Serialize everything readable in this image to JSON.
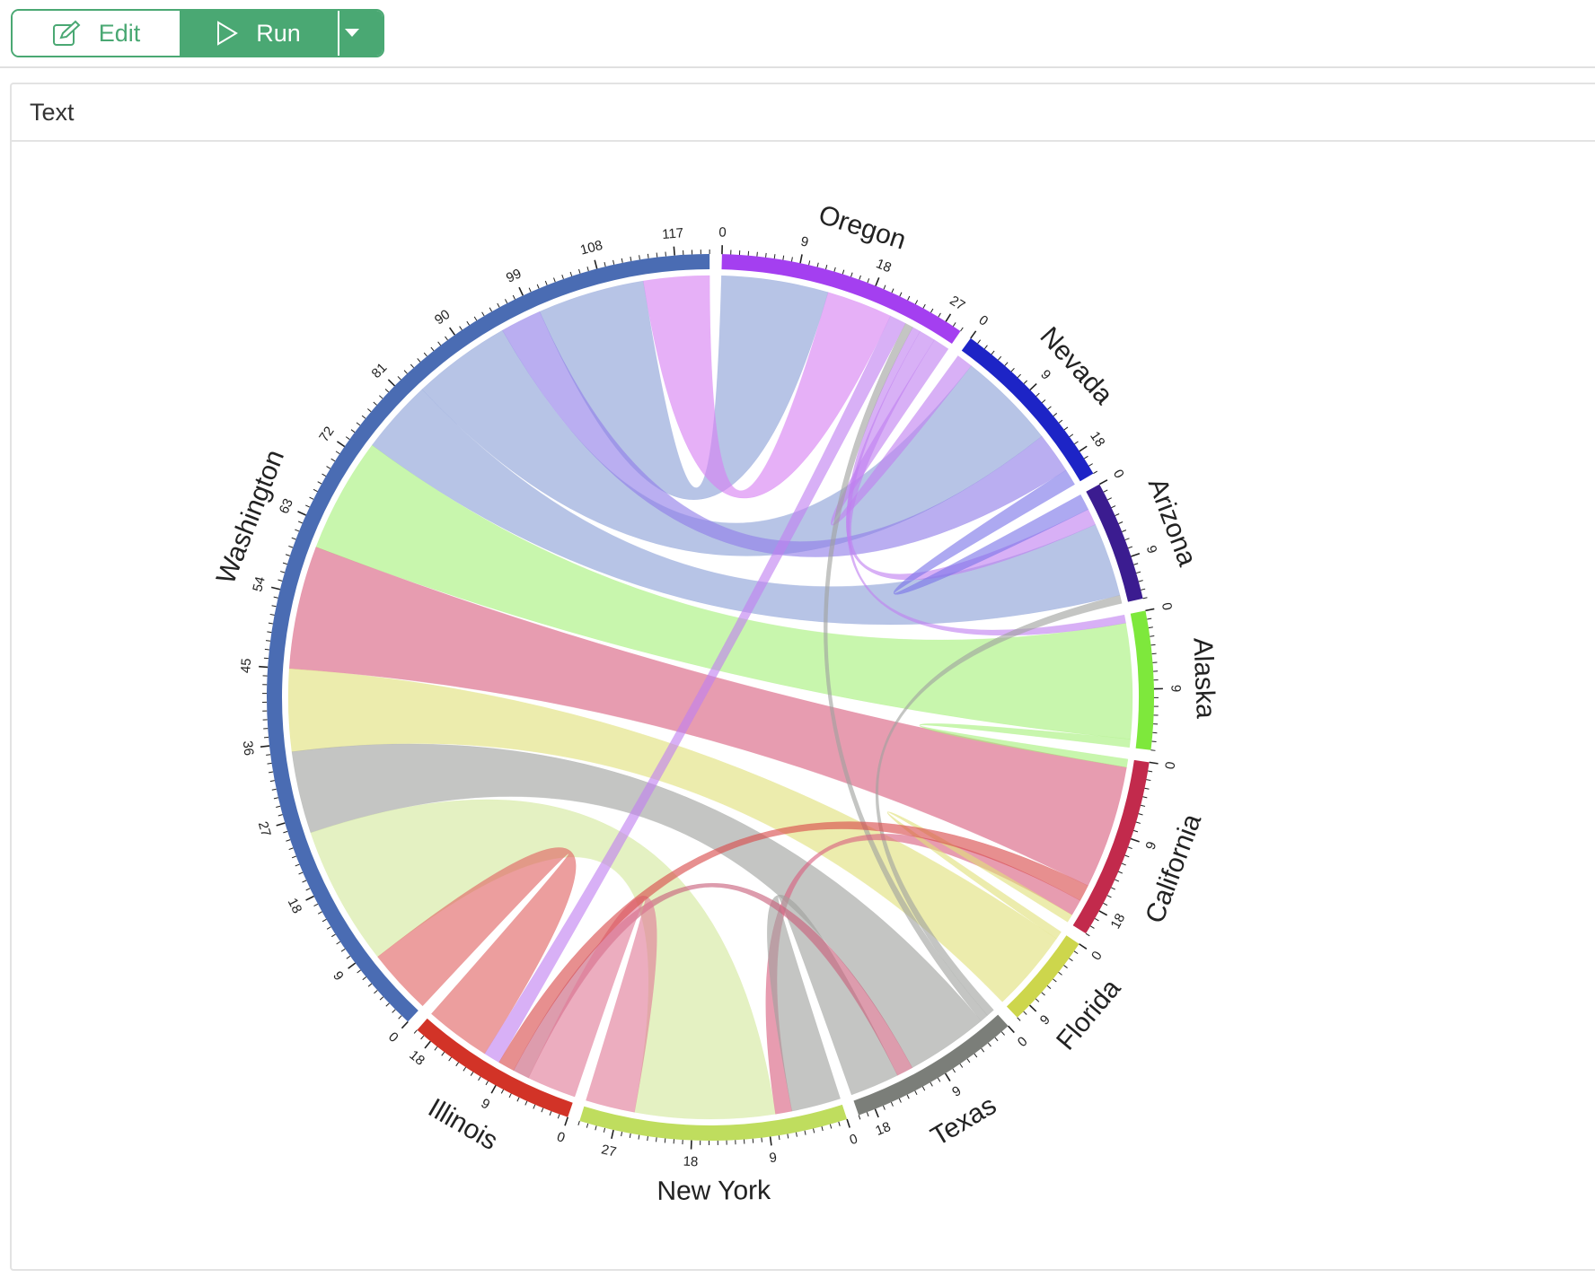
{
  "toolbar": {
    "edit_label": "Edit",
    "run_label": "Run"
  },
  "panel": {
    "title": "Text"
  },
  "chart_data": {
    "type": "chord",
    "title": "",
    "tick_step": 9,
    "sectors": [
      {
        "name": "Oregon",
        "color": "#a43ff0"
      },
      {
        "name": "Nevada",
        "color": "#1d24c6"
      },
      {
        "name": "Arizona",
        "color": "#3b1c90"
      },
      {
        "name": "Alaska",
        "color": "#7ee83c"
      },
      {
        "name": "California",
        "color": "#c22a4c"
      },
      {
        "name": "Florida",
        "color": "#cdd64c"
      },
      {
        "name": "Texas",
        "color": "#7b7e79"
      },
      {
        "name": "New York",
        "color": "#bfdd5e"
      },
      {
        "name": "Illinois",
        "color": "#d23327"
      },
      {
        "name": "Washington",
        "color": "#4a6cb3"
      }
    ],
    "chords": [
      {
        "source": "Washington",
        "target": "Oregon",
        "value": 13,
        "color": "#8a9fd6"
      },
      {
        "source": "Washington",
        "target": "Oregon",
        "value": 8,
        "color": "#d77ff2"
      },
      {
        "source": "Washington",
        "target": "Nevada",
        "value": 12,
        "color": "#8a9fd6"
      },
      {
        "source": "Washington",
        "target": "Nevada",
        "value": 5,
        "color": "#8f7de8"
      },
      {
        "source": "Washington",
        "target": "Arizona",
        "value": 9,
        "color": "#8a9fd6"
      },
      {
        "source": "Washington",
        "target": "Alaska",
        "value": 14,
        "color": "#a6f07a"
      },
      {
        "source": "Washington",
        "target": "California",
        "value": 15,
        "color": "#d9607f"
      },
      {
        "source": "Washington",
        "target": "Florida",
        "value": 10,
        "color": "#e0e07a"
      },
      {
        "source": "Washington",
        "target": "Texas",
        "value": 10,
        "color": "#a0a29e"
      },
      {
        "source": "Washington",
        "target": "New York",
        "value": 17,
        "color": "#d3e89c"
      },
      {
        "source": "Washington",
        "target": "Illinois",
        "value": 8,
        "color": "#e06262"
      },
      {
        "source": "Oregon",
        "target": "Nevada",
        "value": 2,
        "color": "#c080f0"
      },
      {
        "source": "Oregon",
        "target": "Arizona",
        "value": 2,
        "color": "#c080f0"
      },
      {
        "source": "Oregon",
        "target": "Alaska",
        "value": 1,
        "color": "#c080f0"
      },
      {
        "source": "Oregon",
        "target": "Texas",
        "value": 1,
        "color": "#a0a29e"
      },
      {
        "source": "Oregon",
        "target": "Illinois",
        "value": 2,
        "color": "#c080f0"
      },
      {
        "source": "Nevada",
        "target": "Arizona",
        "value": 2,
        "color": "#7a74e8"
      },
      {
        "source": "Arizona",
        "target": "Texas",
        "value": 1,
        "color": "#a0a29e"
      },
      {
        "source": "Alaska",
        "target": "California",
        "value": 1,
        "color": "#a6f07a"
      },
      {
        "source": "California",
        "target": "New York",
        "value": 2,
        "color": "#d9607f"
      },
      {
        "source": "California",
        "target": "Florida",
        "value": 1,
        "color": "#e0e07a"
      },
      {
        "source": "Texas",
        "target": "New York",
        "value": 6,
        "color": "#a0a29e"
      },
      {
        "source": "Texas",
        "target": "Illinois",
        "value": 2,
        "color": "#c8607a"
      },
      {
        "source": "New York",
        "target": "Illinois",
        "value": 6,
        "color": "#e07a98"
      },
      {
        "source": "Illinois",
        "target": "California",
        "value": 2,
        "color": "#d94a4a"
      }
    ]
  }
}
